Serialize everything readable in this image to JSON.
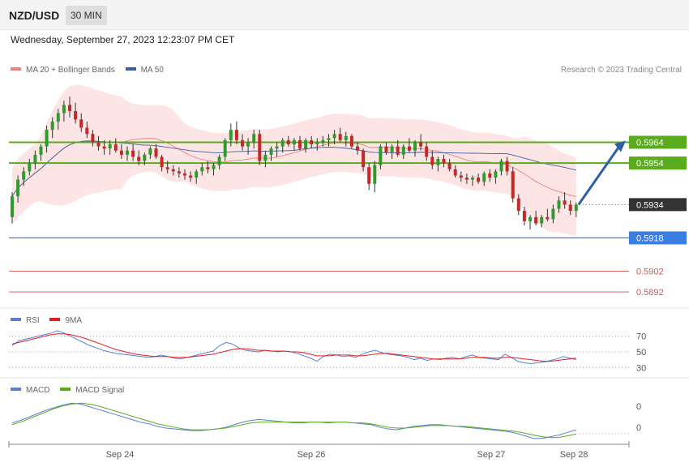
{
  "header": {
    "symbol": "NZD/USD",
    "timeframe": "30 MIN"
  },
  "datetime": "Wednesday, September 27, 2023 12:23:07 PM CET",
  "credit": "Research © 2023 Trading Central",
  "colors": {
    "ma20": "#f08080",
    "ma50": "#3a5f9e",
    "up": "#2e9b2e",
    "down": "#c62828",
    "resistance": "#5aab1e",
    "support_blue": "#3b7de0",
    "support_red": "#e05050",
    "current": "#333333",
    "arrow": "#2f5fa8",
    "rsi": "#5b7fd6",
    "rsi_ma": "#e02020",
    "macd": "#5b7fd6",
    "macd_signal": "#5aab1e"
  },
  "main_legend": [
    {
      "label": "MA 20 + Bollinger Bands",
      "color": "#f08080"
    },
    {
      "label": "MA 50",
      "color": "#3a5f9e"
    }
  ],
  "rsi_legend": [
    {
      "label": "RSI",
      "color": "#5b7fd6"
    },
    {
      "label": "9MA",
      "color": "#e02020"
    }
  ],
  "macd_legend": [
    {
      "label": "MACD",
      "color": "#5b7fd6"
    },
    {
      "label": "MACD Signal",
      "color": "#5aab1e"
    }
  ],
  "chart_data": [
    {
      "type": "candlestick",
      "title": "NZD/USD",
      "ylim": [
        0.5885,
        0.5995
      ],
      "x_labels": [
        "Sep 24",
        "Sep 26",
        "Sep 27",
        "Sep 28"
      ],
      "candles": [
        [
          0.5928,
          0.594,
          0.5925,
          0.5938
        ],
        [
          0.5938,
          0.5948,
          0.5935,
          0.5946
        ],
        [
          0.5946,
          0.5952,
          0.5943,
          0.595
        ],
        [
          0.595,
          0.5956,
          0.5948,
          0.5954
        ],
        [
          0.5954,
          0.596,
          0.5951,
          0.5958
        ],
        [
          0.5958,
          0.5963,
          0.5955,
          0.5962
        ],
        [
          0.5962,
          0.5972,
          0.5959,
          0.597
        ],
        [
          0.597,
          0.5976,
          0.5966,
          0.5974
        ],
        [
          0.5974,
          0.598,
          0.597,
          0.5978
        ],
        [
          0.5978,
          0.5984,
          0.5974,
          0.5982
        ],
        [
          0.5982,
          0.5986,
          0.5976,
          0.5979
        ],
        [
          0.5979,
          0.5983,
          0.5973,
          0.5975
        ],
        [
          0.5975,
          0.5978,
          0.5969,
          0.5971
        ],
        [
          0.5971,
          0.5974,
          0.5966,
          0.5968
        ],
        [
          0.5968,
          0.597,
          0.5962,
          0.5964
        ],
        [
          0.5964,
          0.5967,
          0.596,
          0.5962
        ],
        [
          0.5962,
          0.5965,
          0.5958,
          0.5961
        ],
        [
          0.5961,
          0.5965,
          0.5958,
          0.5963
        ],
        [
          0.5963,
          0.5966,
          0.5959,
          0.596
        ],
        [
          0.596,
          0.5963,
          0.5956,
          0.5958
        ],
        [
          0.5958,
          0.5962,
          0.5955,
          0.596
        ],
        [
          0.596,
          0.5963,
          0.5955,
          0.5957
        ],
        [
          0.5957,
          0.596,
          0.5953,
          0.5955
        ],
        [
          0.5955,
          0.5959,
          0.5953,
          0.5958
        ],
        [
          0.5958,
          0.5962,
          0.5956,
          0.5961
        ],
        [
          0.5961,
          0.5963,
          0.5956,
          0.5957
        ],
        [
          0.5957,
          0.5958,
          0.595,
          0.5952
        ],
        [
          0.5952,
          0.5955,
          0.5949,
          0.5951
        ],
        [
          0.5951,
          0.5953,
          0.5948,
          0.595
        ],
        [
          0.595,
          0.5952,
          0.5947,
          0.5949
        ],
        [
          0.5949,
          0.5951,
          0.5946,
          0.5948
        ],
        [
          0.5948,
          0.595,
          0.5945,
          0.5947
        ],
        [
          0.5947,
          0.5951,
          0.5944,
          0.595
        ],
        [
          0.595,
          0.5954,
          0.5948,
          0.5952
        ],
        [
          0.5952,
          0.5955,
          0.5949,
          0.5951
        ],
        [
          0.5951,
          0.5954,
          0.5948,
          0.5953
        ],
        [
          0.5953,
          0.5958,
          0.5951,
          0.5957
        ],
        [
          0.5957,
          0.5966,
          0.5955,
          0.5965
        ],
        [
          0.5965,
          0.5973,
          0.5962,
          0.597
        ],
        [
          0.597,
          0.5974,
          0.5963,
          0.5965
        ],
        [
          0.5965,
          0.5968,
          0.596,
          0.5962
        ],
        [
          0.5962,
          0.5966,
          0.5958,
          0.5964
        ],
        [
          0.5964,
          0.597,
          0.5961,
          0.5968
        ],
        [
          0.5968,
          0.597,
          0.5953,
          0.5955
        ],
        [
          0.5955,
          0.596,
          0.5952,
          0.5958
        ],
        [
          0.5958,
          0.5962,
          0.5955,
          0.5961
        ],
        [
          0.5961,
          0.5964,
          0.5957,
          0.5962
        ],
        [
          0.5962,
          0.5966,
          0.5959,
          0.5965
        ],
        [
          0.5965,
          0.5967,
          0.5962,
          0.5963
        ],
        [
          0.5963,
          0.5966,
          0.596,
          0.5965
        ],
        [
          0.5965,
          0.5967,
          0.596,
          0.5961
        ],
        [
          0.5961,
          0.5966,
          0.5959,
          0.5965
        ],
        [
          0.5965,
          0.5967,
          0.5961,
          0.5963
        ],
        [
          0.5963,
          0.5966,
          0.596,
          0.5964
        ],
        [
          0.5964,
          0.5967,
          0.5962,
          0.5965
        ],
        [
          0.5965,
          0.5968,
          0.5962,
          0.5966
        ],
        [
          0.5966,
          0.597,
          0.5963,
          0.5968
        ],
        [
          0.5968,
          0.5971,
          0.5964,
          0.5965
        ],
        [
          0.5965,
          0.5969,
          0.5962,
          0.5967
        ],
        [
          0.5967,
          0.5968,
          0.5961,
          0.5962
        ],
        [
          0.5962,
          0.5964,
          0.5958,
          0.596
        ],
        [
          0.596,
          0.5961,
          0.595,
          0.5952
        ],
        [
          0.5952,
          0.5954,
          0.5941,
          0.5944
        ],
        [
          0.5944,
          0.5955,
          0.594,
          0.5953
        ],
        [
          0.5953,
          0.5963,
          0.5951,
          0.5962
        ],
        [
          0.5962,
          0.5964,
          0.5958,
          0.5959
        ],
        [
          0.5959,
          0.5963,
          0.5956,
          0.5962
        ],
        [
          0.5962,
          0.5965,
          0.5957,
          0.5958
        ],
        [
          0.5958,
          0.5963,
          0.5956,
          0.5962
        ],
        [
          0.5962,
          0.5966,
          0.5959,
          0.596
        ],
        [
          0.596,
          0.5965,
          0.5957,
          0.5964
        ],
        [
          0.5964,
          0.5968,
          0.596,
          0.5962
        ],
        [
          0.5962,
          0.5964,
          0.5955,
          0.5957
        ],
        [
          0.5957,
          0.596,
          0.5951,
          0.5953
        ],
        [
          0.5953,
          0.5957,
          0.595,
          0.5956
        ],
        [
          0.5956,
          0.5958,
          0.5952,
          0.5954
        ],
        [
          0.5954,
          0.5956,
          0.595,
          0.5951
        ],
        [
          0.5951,
          0.5953,
          0.5947,
          0.5948
        ],
        [
          0.5948,
          0.595,
          0.5945,
          0.5947
        ],
        [
          0.5947,
          0.5949,
          0.5944,
          0.5946
        ],
        [
          0.5946,
          0.5948,
          0.5943,
          0.5947
        ],
        [
          0.5947,
          0.5949,
          0.5944,
          0.5945
        ],
        [
          0.5945,
          0.595,
          0.5943,
          0.5949
        ],
        [
          0.5949,
          0.5951,
          0.5945,
          0.5947
        ],
        [
          0.5947,
          0.5951,
          0.5944,
          0.595
        ],
        [
          0.595,
          0.5956,
          0.5948,
          0.5955
        ],
        [
          0.5955,
          0.5957,
          0.5948,
          0.595
        ],
        [
          0.595,
          0.5952,
          0.5935,
          0.5937
        ],
        [
          0.5937,
          0.5939,
          0.5929,
          0.5931
        ],
        [
          0.5931,
          0.5933,
          0.5924,
          0.5926
        ],
        [
          0.5926,
          0.5929,
          0.5922,
          0.5928
        ],
        [
          0.5928,
          0.5931,
          0.5924,
          0.5925
        ],
        [
          0.5925,
          0.5929,
          0.5923,
          0.5928
        ],
        [
          0.5928,
          0.5932,
          0.5926,
          0.5927
        ],
        [
          0.5927,
          0.5934,
          0.5925,
          0.5932
        ],
        [
          0.5932,
          0.5938,
          0.593,
          0.5936
        ],
        [
          0.5936,
          0.594,
          0.5932,
          0.5934
        ],
        [
          0.5934,
          0.5936,
          0.5929,
          0.5931
        ],
        [
          0.5931,
          0.5935,
          0.5928,
          0.5934
        ]
      ],
      "levels": [
        {
          "label": "0.5964",
          "value": 0.5964,
          "kind": "resistance"
        },
        {
          "label": "0.5954",
          "value": 0.5954,
          "kind": "resistance"
        },
        {
          "label": "0.5934",
          "value": 0.5934,
          "kind": "current"
        },
        {
          "label": "0.5918",
          "value": 0.5918,
          "kind": "support_blue"
        },
        {
          "label": "0.5902",
          "value": 0.5902,
          "kind": "support_red"
        },
        {
          "label": "0.5892",
          "value": 0.5892,
          "kind": "support_red"
        }
      ],
      "arrow": {
        "from": 0.5934,
        "to": 0.5964
      }
    },
    {
      "type": "line",
      "title": "RSI",
      "ylim": [
        20,
        80
      ],
      "y_ticks": [
        "70",
        "50",
        "30"
      ],
      "series": [
        {
          "name": "RSI",
          "values": [
            58,
            64,
            66,
            68,
            70,
            72,
            74,
            77,
            74,
            70,
            66,
            62,
            58,
            55,
            52,
            50,
            48,
            47,
            46,
            45,
            44,
            43,
            44,
            46,
            44,
            42,
            41,
            43,
            45,
            47,
            49,
            51,
            58,
            62,
            60,
            55,
            52,
            51,
            50,
            52,
            51,
            50,
            51,
            50,
            48,
            45,
            42,
            38,
            44,
            47,
            46,
            44,
            45,
            43,
            47,
            50,
            52,
            49,
            47,
            46,
            45,
            43,
            40,
            42,
            39,
            41,
            40,
            42,
            43,
            41,
            44,
            46,
            43,
            42,
            41,
            40,
            47,
            43,
            38,
            36,
            35,
            36,
            37,
            39,
            41,
            44,
            42,
            40
          ]
        },
        {
          "name": "9MA",
          "values": [
            60,
            62,
            64,
            66,
            68,
            70,
            72,
            73,
            73,
            72,
            70,
            68,
            65,
            62,
            59,
            56,
            53,
            51,
            49,
            47,
            46,
            45,
            44,
            44,
            44,
            43,
            43,
            43,
            44,
            45,
            46,
            47,
            49,
            51,
            53,
            54,
            54,
            53,
            52,
            52,
            51,
            51,
            51,
            50,
            50,
            49,
            47,
            45,
            45,
            45,
            46,
            46,
            46,
            45,
            45,
            46,
            47,
            48,
            48,
            47,
            46,
            45,
            44,
            43,
            42,
            41,
            41,
            41,
            41,
            41,
            42,
            43,
            43,
            43,
            42,
            42,
            43,
            43,
            42,
            41,
            40,
            39,
            38,
            38,
            39,
            40,
            41,
            42
          ]
        }
      ]
    },
    {
      "type": "line",
      "title": "MACD",
      "y_ticks": [
        "0",
        "0"
      ],
      "series": [
        {
          "name": "MACD",
          "values": [
            0.2,
            0.5,
            0.9,
            1.3,
            1.7,
            2.0,
            2.3,
            2.5,
            2.4,
            2.1,
            1.8,
            1.5,
            1.2,
            0.9,
            0.6,
            0.3,
            0.1,
            -0.2,
            -0.4,
            -0.5,
            -0.6,
            -0.7,
            -0.7,
            -0.6,
            -0.5,
            -0.3,
            0.0,
            0.3,
            0.5,
            0.6,
            0.5,
            0.4,
            0.3,
            0.2,
            0.2,
            0.3,
            0.3,
            0.2,
            0.3,
            0.3,
            0.2,
            0.1,
            0.0,
            -0.3,
            -0.5,
            -0.6,
            -0.4,
            -0.2,
            -0.1,
            0.0,
            0.0,
            -0.1,
            -0.2,
            -0.3,
            -0.4,
            -0.5,
            -0.6,
            -0.7,
            -0.8,
            -1.0,
            -1.3,
            -1.6,
            -1.6,
            -1.4,
            -1.2,
            -0.9,
            -0.6
          ]
        },
        {
          "name": "MACD Signal",
          "values": [
            0.0,
            0.3,
            0.7,
            1.1,
            1.5,
            1.9,
            2.2,
            2.4,
            2.5,
            2.4,
            2.2,
            1.9,
            1.6,
            1.3,
            1.0,
            0.7,
            0.4,
            0.1,
            -0.1,
            -0.3,
            -0.5,
            -0.6,
            -0.6,
            -0.6,
            -0.5,
            -0.4,
            -0.2,
            0.0,
            0.2,
            0.3,
            0.3,
            0.3,
            0.3,
            0.3,
            0.3,
            0.3,
            0.3,
            0.3,
            0.3,
            0.3,
            0.2,
            0.2,
            0.1,
            -0.1,
            -0.3,
            -0.4,
            -0.4,
            -0.3,
            -0.2,
            -0.1,
            -0.1,
            -0.1,
            -0.2,
            -0.2,
            -0.3,
            -0.4,
            -0.5,
            -0.6,
            -0.7,
            -0.8,
            -1.0,
            -1.2,
            -1.4,
            -1.5,
            -1.5,
            -1.3,
            -1.1
          ]
        }
      ]
    }
  ]
}
